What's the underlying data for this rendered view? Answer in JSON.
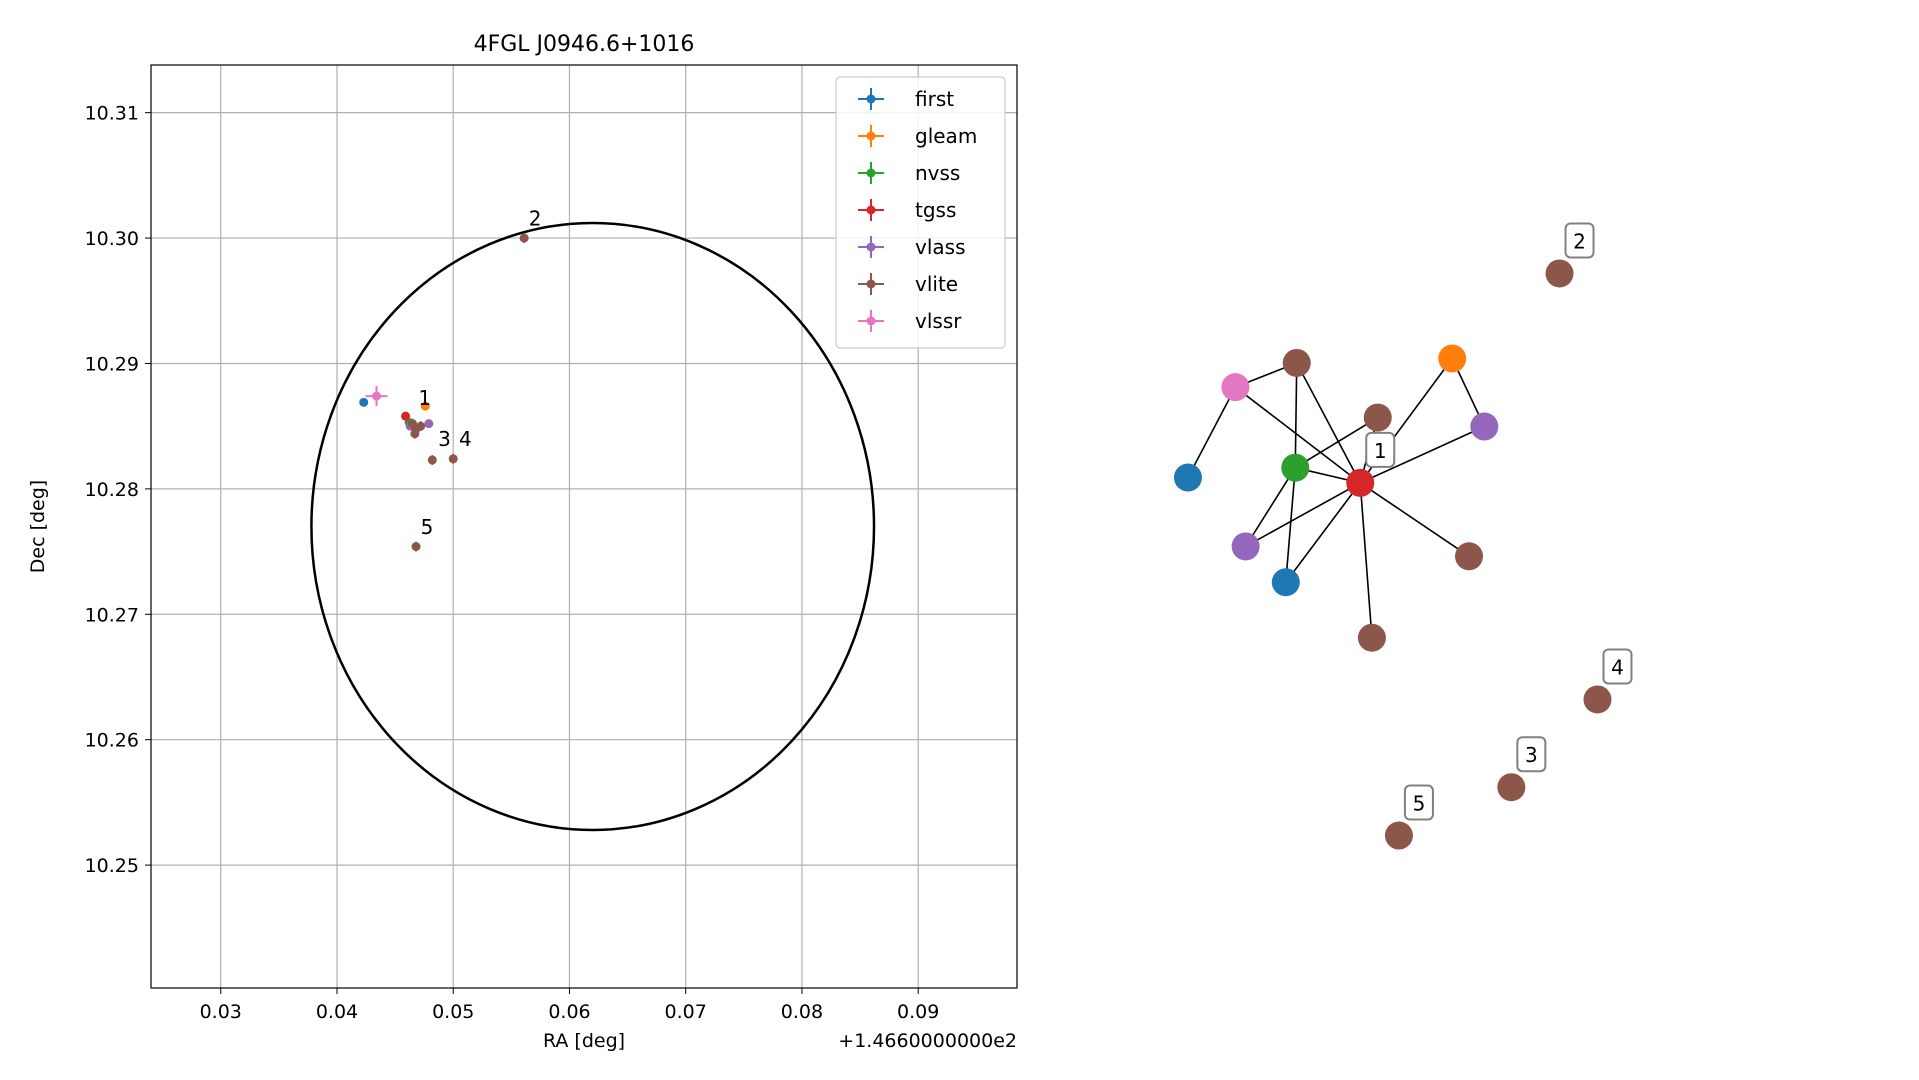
{
  "chart_data": [
    {
      "type": "scatter",
      "title": "4FGL J0946.6+1016",
      "xlabel": "RA [deg]",
      "ylabel": "Dec [deg]",
      "x_offset_label": "+1.4660000000e2",
      "xlim": [
        0.024,
        0.0985
      ],
      "ylim": [
        10.2402,
        10.3138
      ],
      "xticks": [
        0.03,
        0.04,
        0.05,
        0.06,
        0.07,
        0.08,
        0.09
      ],
      "xtick_labels": [
        "0.03",
        "0.04",
        "0.05",
        "0.06",
        "0.07",
        "0.08",
        "0.09"
      ],
      "yticks": [
        10.25,
        10.26,
        10.27,
        10.28,
        10.29,
        10.3,
        10.31
      ],
      "ytick_labels": [
        "10.25",
        "10.26",
        "10.27",
        "10.28",
        "10.29",
        "10.30",
        "10.31"
      ],
      "grid": true,
      "legend_position": "top-right",
      "circle": {
        "center": [
          0.062,
          10.277
        ],
        "radius": 0.0242,
        "color": "#000000"
      },
      "series": [
        {
          "name": "first",
          "color": "#1f77b4",
          "points": [
            {
              "x": 0.0423,
              "y": 10.2869
            }
          ]
        },
        {
          "name": "gleam",
          "color": "#ff7f0e",
          "points": [
            {
              "x": 0.0476,
              "y": 10.2866
            }
          ]
        },
        {
          "name": "nvss",
          "color": "#2ca02c",
          "points": [
            {
              "x": 0.0462,
              "y": 10.2853
            }
          ]
        },
        {
          "name": "tgss",
          "color": "#d62728",
          "points": [
            {
              "x": 0.0459,
              "y": 10.2858
            }
          ]
        },
        {
          "name": "vlass",
          "color": "#9467bd",
          "points": [
            {
              "x": 0.0463,
              "y": 10.285
            },
            {
              "x": 0.0479,
              "y": 10.2852
            }
          ]
        },
        {
          "name": "vlite",
          "color": "#8c564b",
          "points": [
            {
              "x": 0.0468,
              "y": 10.2848
            },
            {
              "x": 0.0467,
              "y": 10.2844
            },
            {
              "x": 0.0472,
              "y": 10.285
            },
            {
              "x": 0.0465,
              "y": 10.2852
            },
            {
              "x": 0.0561,
              "y": 10.3
            },
            {
              "x": 0.0482,
              "y": 10.2823
            },
            {
              "x": 0.05,
              "y": 10.2824
            },
            {
              "x": 0.0468,
              "y": 10.2754
            }
          ]
        },
        {
          "name": "vlssr",
          "color": "#e377c2",
          "points": [
            {
              "x": 0.0434,
              "y": 10.2874
            }
          ]
        }
      ],
      "annotations": [
        {
          "text": "1",
          "x": 0.047,
          "y": 10.2867
        },
        {
          "text": "2",
          "x": 0.0565,
          "y": 10.301
        },
        {
          "text": "3",
          "x": 0.0487,
          "y": 10.2834
        },
        {
          "text": "4",
          "x": 0.0505,
          "y": 10.2834
        },
        {
          "text": "5",
          "x": 0.0472,
          "y": 10.2764
        }
      ]
    },
    {
      "type": "network",
      "nodes": [
        {
          "id": "pink",
          "x": 0.117,
          "y": 0.668,
          "color": "#e377c2"
        },
        {
          "id": "brownTop",
          "x": 0.201,
          "y": 0.695,
          "color": "#8c564b"
        },
        {
          "id": "blueLeft",
          "x": 0.052,
          "y": 0.567,
          "color": "#1f77b4"
        },
        {
          "id": "green",
          "x": 0.199,
          "y": 0.578,
          "color": "#2ca02c"
        },
        {
          "id": "red",
          "x": 0.288,
          "y": 0.561,
          "color": "#d62728",
          "label": "1"
        },
        {
          "id": "brownMid",
          "x": 0.312,
          "y": 0.634,
          "color": "#8c564b"
        },
        {
          "id": "orange",
          "x": 0.414,
          "y": 0.7,
          "color": "#ff7f0e"
        },
        {
          "id": "purpleRight",
          "x": 0.458,
          "y": 0.624,
          "color": "#9467bd"
        },
        {
          "id": "purpleLeft",
          "x": 0.131,
          "y": 0.49,
          "color": "#9467bd"
        },
        {
          "id": "blueLow",
          "x": 0.186,
          "y": 0.45,
          "color": "#1f77b4"
        },
        {
          "id": "brownRight",
          "x": 0.437,
          "y": 0.479,
          "color": "#8c564b"
        },
        {
          "id": "brownLow",
          "x": 0.304,
          "y": 0.388,
          "color": "#8c564b"
        },
        {
          "id": "n2",
          "x": 0.561,
          "y": 0.795,
          "color": "#8c564b",
          "label": "2"
        },
        {
          "id": "n4",
          "x": 0.613,
          "y": 0.319,
          "color": "#8c564b",
          "label": "4"
        },
        {
          "id": "n3",
          "x": 0.495,
          "y": 0.221,
          "color": "#8c564b",
          "label": "3"
        },
        {
          "id": "n5",
          "x": 0.341,
          "y": 0.167,
          "color": "#8c564b",
          "label": "5"
        }
      ],
      "edges": [
        [
          "pink",
          "brownTop"
        ],
        [
          "pink",
          "blueLeft"
        ],
        [
          "pink",
          "red"
        ],
        [
          "brownTop",
          "green"
        ],
        [
          "brownTop",
          "red"
        ],
        [
          "green",
          "red"
        ],
        [
          "green",
          "brownMid"
        ],
        [
          "green",
          "purpleLeft"
        ],
        [
          "green",
          "blueLow"
        ],
        [
          "red",
          "brownMid"
        ],
        [
          "red",
          "orange"
        ],
        [
          "red",
          "purpleRight"
        ],
        [
          "red",
          "purpleLeft"
        ],
        [
          "red",
          "blueLow"
        ],
        [
          "red",
          "brownRight"
        ],
        [
          "red",
          "brownLow"
        ],
        [
          "orange",
          "purpleRight"
        ]
      ]
    }
  ]
}
